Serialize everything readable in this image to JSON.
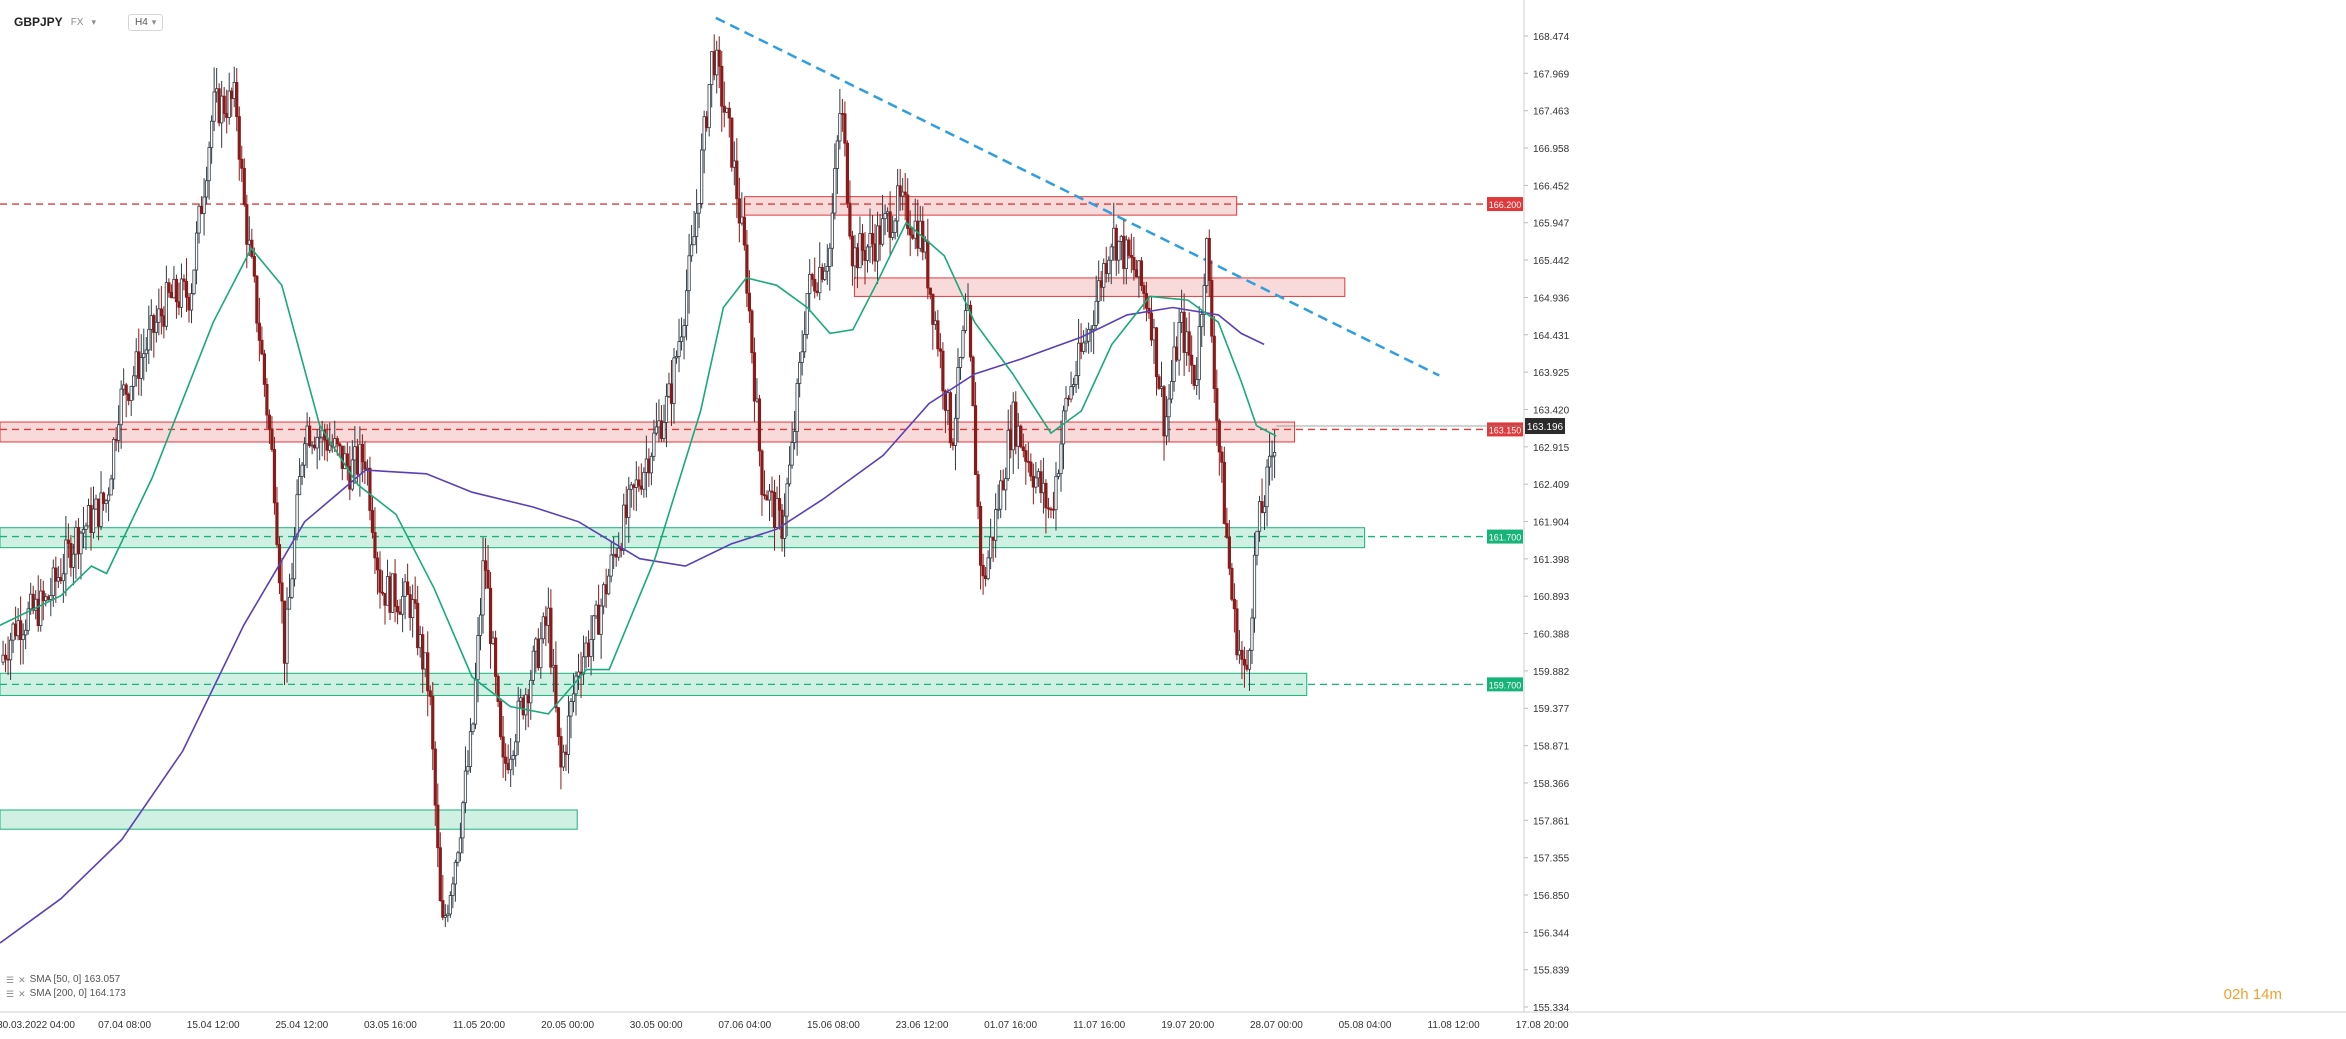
{
  "header": {
    "symbol": "GBPJPY",
    "market": "FX",
    "timeframe": "H4"
  },
  "indicators": [
    {
      "label": "SMA [50, 0] 163.057",
      "color": "#1aa97b"
    },
    {
      "label": "SMA [200, 0] 164.173",
      "color": "#5a3fb8"
    }
  ],
  "countdown": "02h 14m",
  "colors": {
    "up_candle": "#2f3b46",
    "down_candle": "#8b1a1a",
    "resistance": "#e0383b",
    "support": "#17b47a",
    "trendline": "#2e9ee0",
    "sma50": "#1aa97b",
    "sma200": "#5a3fb8"
  },
  "chart_data": {
    "type": "candlestick",
    "y_ticks": [
      "168.474",
      "167.969",
      "167.463",
      "166.958",
      "166.452",
      "165.947",
      "165.442",
      "164.936",
      "164.431",
      "163.925",
      "163.420",
      "162.915",
      "162.409",
      "161.904",
      "161.398",
      "160.893",
      "160.388",
      "159.882",
      "159.377",
      "158.871",
      "158.366",
      "157.861",
      "157.355",
      "156.850",
      "156.344",
      "155.839",
      "155.334"
    ],
    "ylim": [
      155.334,
      168.474
    ],
    "x_ticks": [
      "30.03.2022 04:00",
      "07.04 08:00",
      "15.04 12:00",
      "25.04 12:00",
      "03.05 16:00",
      "11.05 20:00",
      "20.05 00:00",
      "30.05 00:00",
      "07.06 04:00",
      "15.06 08:00",
      "23.06 12:00",
      "01.07 16:00",
      "11.07 16:00",
      "19.07 20:00",
      "28.07 00:00",
      "05.08 04:00",
      "11.08 12:00",
      "17.08 20:00"
    ],
    "current_price": "163.196",
    "levels": [
      {
        "value": 166.2,
        "label": "166.200",
        "kind": "resistance"
      },
      {
        "value": 163.15,
        "label": "163.150",
        "kind": "resistance"
      },
      {
        "value": 161.7,
        "label": "161.700",
        "kind": "support"
      },
      {
        "value": 159.7,
        "label": "159.700",
        "kind": "support"
      }
    ],
    "zones": [
      {
        "kind": "resistance",
        "low": 166.05,
        "high": 166.3,
        "x_from": 0.489,
        "x_to": 0.812
      },
      {
        "kind": "resistance",
        "low": 164.95,
        "high": 165.2,
        "x_from": 0.561,
        "x_to": 0.883
      },
      {
        "kind": "resistance",
        "low": 162.98,
        "high": 163.25,
        "x_from": 0.0,
        "x_to": 0.85
      },
      {
        "kind": "support",
        "low": 161.55,
        "high": 161.82,
        "x_from": 0.0,
        "x_to": 0.896
      },
      {
        "kind": "support",
        "low": 159.55,
        "high": 159.85,
        "x_from": 0.0,
        "x_to": 0.858
      },
      {
        "kind": "support",
        "low": 157.74,
        "high": 158.0,
        "x_from": 0.0,
        "x_to": 0.379
      }
    ],
    "trendline": {
      "from": {
        "x": 0.47,
        "value": 168.72
      },
      "to": {
        "x": 0.945,
        "value": 163.88
      }
    },
    "price_path": [
      {
        "x": 0.0,
        "v": 160.0
      },
      {
        "x": 0.01,
        "v": 160.5
      },
      {
        "x": 0.03,
        "v": 160.8
      },
      {
        "x": 0.05,
        "v": 161.7
      },
      {
        "x": 0.07,
        "v": 162.2
      },
      {
        "x": 0.078,
        "v": 163.5
      },
      {
        "x": 0.09,
        "v": 164.0
      },
      {
        "x": 0.11,
        "v": 164.9
      },
      {
        "x": 0.125,
        "v": 165.0
      },
      {
        "x": 0.14,
        "v": 167.5
      },
      {
        "x": 0.155,
        "v": 167.6
      },
      {
        "x": 0.16,
        "v": 166.2
      },
      {
        "x": 0.17,
        "v": 164.5
      },
      {
        "x": 0.18,
        "v": 162.5
      },
      {
        "x": 0.187,
        "v": 160.1
      },
      {
        "x": 0.2,
        "v": 163.2
      },
      {
        "x": 0.215,
        "v": 163.0
      },
      {
        "x": 0.23,
        "v": 162.6
      },
      {
        "x": 0.24,
        "v": 162.8
      },
      {
        "x": 0.25,
        "v": 161.0
      },
      {
        "x": 0.27,
        "v": 160.8
      },
      {
        "x": 0.282,
        "v": 159.6
      },
      {
        "x": 0.29,
        "v": 156.3
      },
      {
        "x": 0.3,
        "v": 157.5
      },
      {
        "x": 0.31,
        "v": 159.0
      },
      {
        "x": 0.318,
        "v": 161.5
      },
      {
        "x": 0.33,
        "v": 158.5
      },
      {
        "x": 0.345,
        "v": 159.6
      },
      {
        "x": 0.36,
        "v": 160.6
      },
      {
        "x": 0.368,
        "v": 158.5
      },
      {
        "x": 0.38,
        "v": 160.0
      },
      {
        "x": 0.39,
        "v": 160.4
      },
      {
        "x": 0.405,
        "v": 161.6
      },
      {
        "x": 0.42,
        "v": 162.5
      },
      {
        "x": 0.44,
        "v": 163.6
      },
      {
        "x": 0.455,
        "v": 165.6
      },
      {
        "x": 0.468,
        "v": 168.3
      },
      {
        "x": 0.48,
        "v": 167.0
      },
      {
        "x": 0.49,
        "v": 165.3
      },
      {
        "x": 0.5,
        "v": 162.5
      },
      {
        "x": 0.513,
        "v": 161.8
      },
      {
        "x": 0.52,
        "v": 162.8
      },
      {
        "x": 0.53,
        "v": 165.0
      },
      {
        "x": 0.545,
        "v": 165.6
      },
      {
        "x": 0.552,
        "v": 167.6
      },
      {
        "x": 0.56,
        "v": 165.5
      },
      {
        "x": 0.575,
        "v": 165.7
      },
      {
        "x": 0.59,
        "v": 166.2
      },
      {
        "x": 0.605,
        "v": 165.8
      },
      {
        "x": 0.615,
        "v": 164.5
      },
      {
        "x": 0.625,
        "v": 163.0
      },
      {
        "x": 0.635,
        "v": 164.8
      },
      {
        "x": 0.645,
        "v": 161.0
      },
      {
        "x": 0.655,
        "v": 162.1
      },
      {
        "x": 0.665,
        "v": 163.3
      },
      {
        "x": 0.68,
        "v": 162.5
      },
      {
        "x": 0.69,
        "v": 162.0
      },
      {
        "x": 0.7,
        "v": 163.5
      },
      {
        "x": 0.715,
        "v": 164.5
      },
      {
        "x": 0.73,
        "v": 165.8
      },
      {
        "x": 0.745,
        "v": 165.3
      },
      {
        "x": 0.755,
        "v": 164.8
      },
      {
        "x": 0.765,
        "v": 163.2
      },
      {
        "x": 0.775,
        "v": 164.6
      },
      {
        "x": 0.785,
        "v": 163.8
      },
      {
        "x": 0.792,
        "v": 165.7
      },
      {
        "x": 0.8,
        "v": 163.0
      },
      {
        "x": 0.81,
        "v": 160.6
      },
      {
        "x": 0.818,
        "v": 159.7
      },
      {
        "x": 0.825,
        "v": 161.7
      },
      {
        "x": 0.833,
        "v": 162.5
      },
      {
        "x": 0.838,
        "v": 163.2
      }
    ],
    "sma50_path": [
      {
        "x": 0.0,
        "v": 160.5
      },
      {
        "x": 0.04,
        "v": 160.9
      },
      {
        "x": 0.06,
        "v": 161.3
      },
      {
        "x": 0.07,
        "v": 161.2
      },
      {
        "x": 0.1,
        "v": 162.5
      },
      {
        "x": 0.14,
        "v": 164.6
      },
      {
        "x": 0.165,
        "v": 165.6
      },
      {
        "x": 0.185,
        "v": 165.1
      },
      {
        "x": 0.21,
        "v": 163.2
      },
      {
        "x": 0.235,
        "v": 162.4
      },
      {
        "x": 0.26,
        "v": 162.0
      },
      {
        "x": 0.285,
        "v": 161.0
      },
      {
        "x": 0.31,
        "v": 159.8
      },
      {
        "x": 0.335,
        "v": 159.4
      },
      {
        "x": 0.36,
        "v": 159.3
      },
      {
        "x": 0.385,
        "v": 159.9
      },
      {
        "x": 0.4,
        "v": 159.9
      },
      {
        "x": 0.43,
        "v": 161.4
      },
      {
        "x": 0.46,
        "v": 163.4
      },
      {
        "x": 0.475,
        "v": 164.8
      },
      {
        "x": 0.49,
        "v": 165.2
      },
      {
        "x": 0.51,
        "v": 165.1
      },
      {
        "x": 0.53,
        "v": 164.8
      },
      {
        "x": 0.545,
        "v": 164.45
      },
      {
        "x": 0.56,
        "v": 164.5
      },
      {
        "x": 0.575,
        "v": 165.1
      },
      {
        "x": 0.595,
        "v": 165.95
      },
      {
        "x": 0.62,
        "v": 165.5
      },
      {
        "x": 0.64,
        "v": 164.6
      },
      {
        "x": 0.665,
        "v": 163.9
      },
      {
        "x": 0.69,
        "v": 163.1
      },
      {
        "x": 0.71,
        "v": 163.4
      },
      {
        "x": 0.73,
        "v": 164.3
      },
      {
        "x": 0.755,
        "v": 164.95
      },
      {
        "x": 0.78,
        "v": 164.9
      },
      {
        "x": 0.8,
        "v": 164.6
      },
      {
        "x": 0.815,
        "v": 163.8
      },
      {
        "x": 0.825,
        "v": 163.2
      },
      {
        "x": 0.838,
        "v": 163.06
      }
    ],
    "sma200_path": [
      {
        "x": 0.0,
        "v": 156.2
      },
      {
        "x": 0.04,
        "v": 156.8
      },
      {
        "x": 0.08,
        "v": 157.6
      },
      {
        "x": 0.12,
        "v": 158.8
      },
      {
        "x": 0.16,
        "v": 160.5
      },
      {
        "x": 0.2,
        "v": 161.9
      },
      {
        "x": 0.24,
        "v": 162.6
      },
      {
        "x": 0.28,
        "v": 162.55
      },
      {
        "x": 0.31,
        "v": 162.3
      },
      {
        "x": 0.35,
        "v": 162.1
      },
      {
        "x": 0.38,
        "v": 161.9
      },
      {
        "x": 0.42,
        "v": 161.4
      },
      {
        "x": 0.45,
        "v": 161.3
      },
      {
        "x": 0.48,
        "v": 161.6
      },
      {
        "x": 0.51,
        "v": 161.8
      },
      {
        "x": 0.54,
        "v": 162.2
      },
      {
        "x": 0.58,
        "v": 162.8
      },
      {
        "x": 0.61,
        "v": 163.5
      },
      {
        "x": 0.64,
        "v": 163.9
      },
      {
        "x": 0.67,
        "v": 164.1
      },
      {
        "x": 0.71,
        "v": 164.4
      },
      {
        "x": 0.74,
        "v": 164.7
      },
      {
        "x": 0.77,
        "v": 164.8
      },
      {
        "x": 0.8,
        "v": 164.7
      },
      {
        "x": 0.815,
        "v": 164.45
      },
      {
        "x": 0.83,
        "v": 164.3
      }
    ]
  }
}
